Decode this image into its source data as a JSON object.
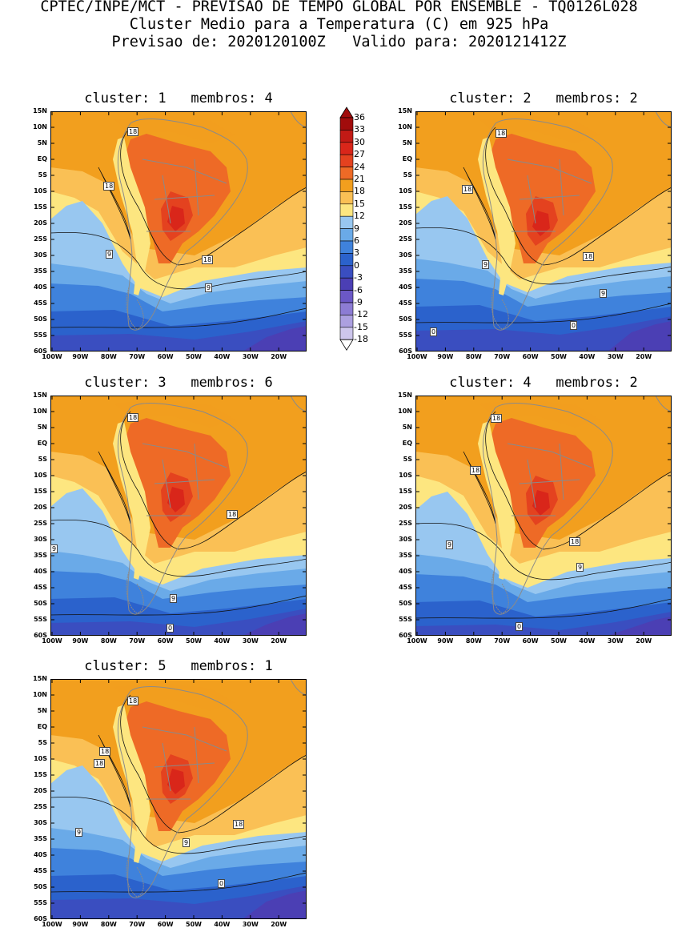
{
  "header": {
    "line1": "CPTEC/INPE/MCT - PREVISAO DE TEMPO GLOBAL POR ENSEMBLE - TQ0126L028",
    "line2": "Cluster Medio para a Temperatura (C) em 925 hPa",
    "line3": "Previsao de: 2020120100Z   Valido para: 2020121412Z"
  },
  "axes": {
    "lat_labels": [
      "15N",
      "10N",
      "5N",
      "EQ",
      "5S",
      "10S",
      "15S",
      "20S",
      "25S",
      "30S",
      "35S",
      "40S",
      "45S",
      "50S",
      "55S",
      "60S"
    ],
    "lon_labels": [
      "100W",
      "90W",
      "80W",
      "70W",
      "60W",
      "50W",
      "40W",
      "30W",
      "20W"
    ]
  },
  "colorbar": {
    "levels": [
      "36",
      "33",
      "30",
      "27",
      "24",
      "21",
      "18",
      "15",
      "12",
      "9",
      "6",
      "3",
      "0",
      "-3",
      "-6",
      "-9",
      "-12",
      "-15",
      "-18"
    ],
    "colors": [
      "#a10c0c",
      "#c21a15",
      "#d9261a",
      "#e4421f",
      "#ee6a26",
      "#f29f1e",
      "#fac055",
      "#fde680",
      "#98c7f0",
      "#6aaae8",
      "#3f82dc",
      "#2b62cc",
      "#3a4ec0",
      "#4b3fb4",
      "#6b58c6",
      "#8c7cd4",
      "#aca0e0",
      "#cdc6ec"
    ]
  },
  "panels": [
    {
      "title": "cluster: 1   membros: 4",
      "contour_labels": [
        "18",
        "18",
        "18",
        "9",
        "9"
      ]
    },
    {
      "title": "cluster: 2   membros: 2",
      "contour_labels": [
        "18",
        "18",
        "18",
        "9",
        "9",
        "0",
        "0"
      ]
    },
    {
      "title": "cluster: 3   membros: 6",
      "contour_labels": [
        "18",
        "18",
        "9",
        "9",
        "0"
      ]
    },
    {
      "title": "cluster: 4   membros: 2",
      "contour_labels": [
        "18",
        "18",
        "18",
        "9",
        "9",
        "0"
      ]
    },
    {
      "title": "cluster: 5   membros: 1",
      "contour_labels": [
        "18",
        "18",
        "18",
        "18",
        "9",
        "9",
        "0"
      ]
    }
  ]
}
